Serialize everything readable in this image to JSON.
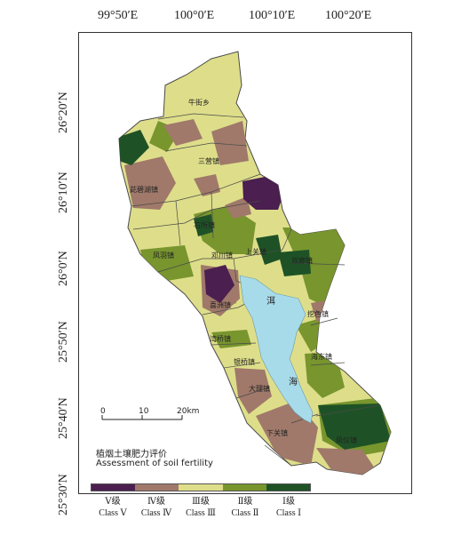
{
  "longitude_labels": [
    "99°50′E",
    "100°0′E",
    "100°10′E",
    "100°20′E"
  ],
  "latitude_labels": [
    "26°20′N",
    "26°10′N",
    "26°0′N",
    "25°50′N",
    "25°40′N",
    "25°30′N"
  ],
  "towns": [
    "牛街乡",
    "三营镇",
    "茈碧湖镇",
    "右所镇",
    "凤羽镇",
    "邓川镇",
    "上关镇",
    "双廊镇",
    "挖色镇",
    "海东镇",
    "喜洲镇",
    "湾桥镇",
    "银桥镇",
    "大理镇",
    "下关镇",
    "凤仪镇"
  ],
  "lake_labels": [
    "洱",
    "海"
  ],
  "scale_bar": {
    "ticks": [
      "0",
      "10",
      "20"
    ],
    "unit": "km"
  },
  "legend": {
    "title_cn": "植烟土壤肥力评价",
    "title_en": "Assessment of soil fertility",
    "classes": [
      {
        "cn": "Ⅴ级",
        "en": "Class Ⅴ",
        "color": "#4b1f4f"
      },
      {
        "cn": "Ⅳ级",
        "en": "Class Ⅳ",
        "color": "#a0796a"
      },
      {
        "cn": "Ⅲ级",
        "en": "Class Ⅲ",
        "color": "#dede8a"
      },
      {
        "cn": "Ⅱ级",
        "en": "Class Ⅱ",
        "color": "#78952e"
      },
      {
        "cn": "Ⅰ级",
        "en": "Class Ⅰ",
        "color": "#1e5226"
      }
    ]
  },
  "colors": {
    "lake": "#a7dbea",
    "boundary": "#4a4a4a"
  }
}
